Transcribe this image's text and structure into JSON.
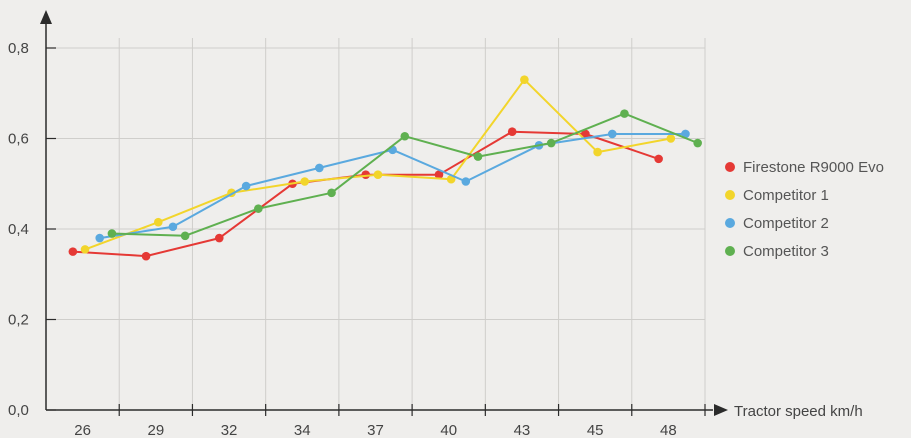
{
  "chart_data": {
    "type": "line",
    "title": "",
    "xlabel": "Tractor speed km/h",
    "ylabel": "",
    "ylim": [
      0,
      0.8
    ],
    "y_ticks": [
      "0,0",
      "0,2",
      "0,4",
      "0,6",
      "0,8"
    ],
    "x_ticks": [
      "26",
      "29",
      "32",
      "34",
      "37",
      "40",
      "43",
      "45",
      "48"
    ],
    "grid": true,
    "legend_position": "right",
    "series": [
      {
        "name": "Firestone R9000 Evo",
        "color": "#e53935",
        "points": [
          [
            25.1,
            0.35
          ],
          [
            28.1,
            0.34
          ],
          [
            31.1,
            0.38
          ],
          [
            34.1,
            0.5
          ],
          [
            37.1,
            0.52
          ],
          [
            40.1,
            0.52
          ],
          [
            43.1,
            0.615
          ],
          [
            46.1,
            0.61
          ],
          [
            49.1,
            0.555
          ]
        ]
      },
      {
        "name": "Competitor 1",
        "color": "#f2d52b",
        "points": [
          [
            25.6,
            0.355
          ],
          [
            28.6,
            0.415
          ],
          [
            31.6,
            0.48
          ],
          [
            34.6,
            0.505
          ],
          [
            37.6,
            0.52
          ],
          [
            40.6,
            0.51
          ],
          [
            43.6,
            0.73
          ],
          [
            46.6,
            0.57
          ],
          [
            49.6,
            0.6
          ]
        ]
      },
      {
        "name": "Competitor 2",
        "color": "#5aa9df",
        "points": [
          [
            26.2,
            0.38
          ],
          [
            29.2,
            0.405
          ],
          [
            32.2,
            0.495
          ],
          [
            35.2,
            0.535
          ],
          [
            38.2,
            0.575
          ],
          [
            41.2,
            0.505
          ],
          [
            44.2,
            0.585
          ],
          [
            47.2,
            0.61
          ],
          [
            50.2,
            0.61
          ]
        ]
      },
      {
        "name": "Competitor 3",
        "color": "#5fb050",
        "points": [
          [
            26.7,
            0.39
          ],
          [
            29.7,
            0.385
          ],
          [
            32.7,
            0.445
          ],
          [
            35.7,
            0.48
          ],
          [
            38.7,
            0.605
          ],
          [
            41.7,
            0.56
          ],
          [
            44.7,
            0.59
          ],
          [
            47.7,
            0.655
          ],
          [
            50.7,
            0.59
          ]
        ]
      }
    ]
  }
}
